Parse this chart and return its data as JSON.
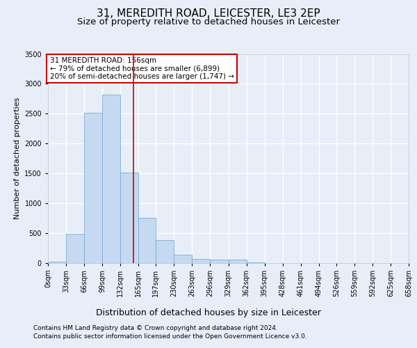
{
  "title1": "31, MEREDITH ROAD, LEICESTER, LE3 2EP",
  "title2": "Size of property relative to detached houses in Leicester",
  "xlabel": "Distribution of detached houses by size in Leicester",
  "ylabel": "Number of detached properties",
  "footer1": "Contains HM Land Registry data © Crown copyright and database right 2024.",
  "footer2": "Contains public sector information licensed under the Open Government Licence v3.0.",
  "annotation_title": "31 MEREDITH ROAD: 156sqm",
  "annotation_line1": "← 79% of detached houses are smaller (6,899)",
  "annotation_line2": "20% of semi-detached houses are larger (1,747) →",
  "bar_values": [
    20,
    480,
    2510,
    2820,
    1510,
    750,
    380,
    140,
    65,
    50,
    50,
    5,
    0,
    0,
    0,
    0,
    0,
    0,
    0,
    0
  ],
  "bin_edges": [
    0,
    33,
    66,
    99,
    132,
    165,
    197,
    230,
    263,
    296,
    329,
    362,
    395,
    428,
    461,
    494,
    526,
    559,
    592,
    625,
    658
  ],
  "tick_labels": [
    "0sqm",
    "33sqm",
    "66sqm",
    "99sqm",
    "132sqm",
    "165sqm",
    "197sqm",
    "230sqm",
    "263sqm",
    "296sqm",
    "329sqm",
    "362sqm",
    "395sqm",
    "428sqm",
    "461sqm",
    "494sqm",
    "526sqm",
    "559sqm",
    "592sqm",
    "625sqm",
    "658sqm"
  ],
  "bar_color": "#c5d9f0",
  "bar_edge_color": "#7aadd4",
  "property_line_x": 156,
  "ylim": [
    0,
    3500
  ],
  "bg_color": "#e8eef8",
  "plot_bg_color": "#e8eef8",
  "grid_color": "#ffffff",
  "annotation_box_color": "#ffffff",
  "annotation_box_edge": "#cc0000",
  "red_line_color": "#cc0000",
  "title1_fontsize": 11,
  "title2_fontsize": 9.5,
  "ylabel_fontsize": 8,
  "xlabel_fontsize": 9,
  "tick_fontsize": 7,
  "footer_fontsize": 6.5,
  "annotation_fontsize": 7.5
}
